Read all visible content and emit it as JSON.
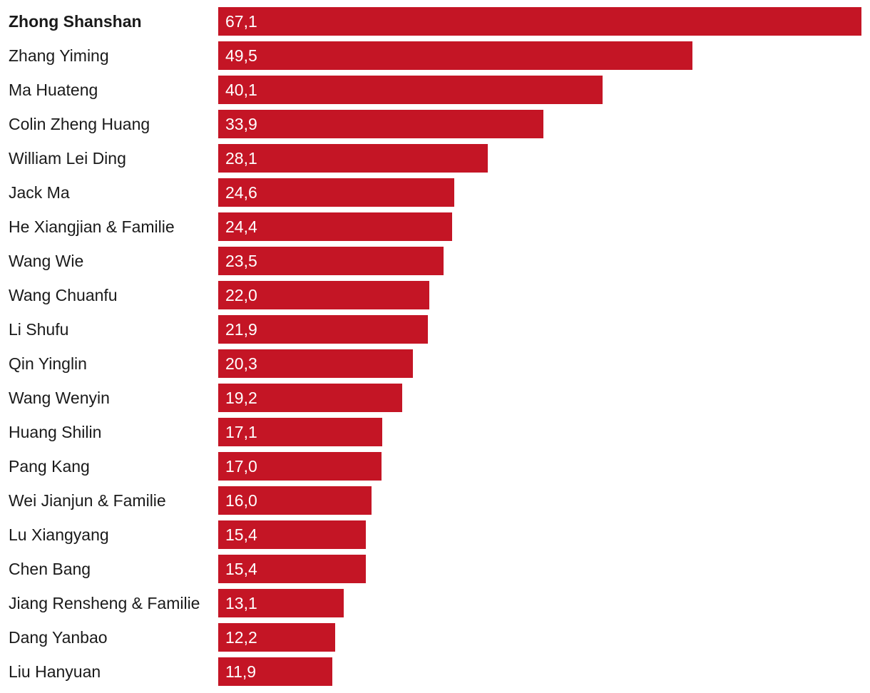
{
  "chart_data": {
    "type": "bar",
    "orientation": "horizontal",
    "bar_color": "#C41525",
    "label_color": "#1a1a1a",
    "value_label_color": "#ffffff",
    "highlighted_category": "Zhong Shanshan",
    "categories": [
      "Zhong Shanshan",
      "Zhang Yiming",
      "Ma Huateng",
      "Colin Zheng Huang",
      "William Lei Ding",
      "Jack Ma",
      "He Xiangjian & Familie",
      "Wang Wie",
      "Wang Chuanfu",
      "Li Shufu",
      "Qin Yinglin",
      "Wang Wenyin",
      "Huang Shilin",
      "Pang Kang",
      "Wei Jianjun & Familie",
      "Lu Xiangyang",
      "Chen Bang",
      "Jiang Rensheng & Familie",
      "Dang Yanbao",
      "Liu Hanyuan"
    ],
    "values": [
      67.1,
      49.5,
      40.1,
      33.9,
      28.1,
      24.6,
      24.4,
      23.5,
      22.0,
      21.9,
      20.3,
      19.2,
      17.1,
      17.0,
      16.0,
      15.4,
      15.4,
      13.1,
      12.2,
      11.9
    ],
    "value_labels": [
      "67,1",
      "49,5",
      "40,1",
      "33,9",
      "28,1",
      "24,6",
      "24,4",
      "23,5",
      "22,0",
      "21,9",
      "20,3",
      "19,2",
      "17,1",
      "17,0",
      "16,0",
      "15,4",
      "15,4",
      "13,1",
      "12,2",
      "11,9"
    ],
    "xlim": [
      0,
      67.1
    ],
    "grid": false,
    "legend": "none"
  }
}
